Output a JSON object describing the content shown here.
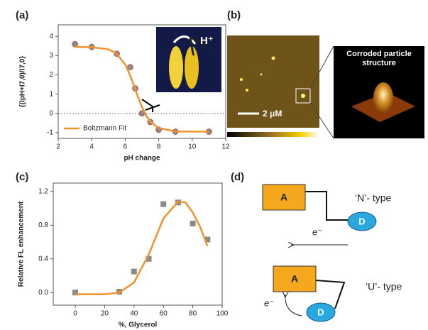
{
  "panels": [
    "(a)",
    "(b)",
    "(c)",
    "(d)"
  ],
  "chart_data": [
    {
      "type": "scatter",
      "x_label": "pH change",
      "y_label": "{(IpH+I7,0)/I7,0}",
      "xlim": [
        2,
        12
      ],
      "ylim": [
        -1.3,
        4.6
      ],
      "xticks": [
        2,
        4,
        6,
        8,
        10,
        12
      ],
      "yticks": [
        -1,
        0,
        1,
        2,
        3,
        4
      ],
      "reference_line": 0,
      "legend": "lower left",
      "inset_text": "H⁺",
      "series": [
        {
          "color": "#8a8a8a",
          "marker": "circle",
          "x": [
            3,
            4,
            5.5,
            6.3,
            6.6,
            7,
            7.5,
            8,
            9,
            11
          ],
          "values": [
            3.6,
            3.45,
            3.1,
            2.4,
            1.3,
            0.0,
            -0.45,
            -0.85,
            -0.95,
            -0.95
          ]
        },
        {
          "name": "Boltzmann Fit",
          "color": "#f0922b",
          "marker": "line",
          "x": [
            3,
            4,
            5,
            5.5,
            6,
            6.25,
            6.5,
            6.75,
            7,
            7.25,
            7.5,
            8,
            9,
            11
          ],
          "values": [
            3.45,
            3.44,
            3.33,
            3.1,
            2.53,
            2.07,
            1.49,
            0.89,
            0.33,
            -0.11,
            -0.43,
            -0.76,
            -0.94,
            -0.95
          ]
        }
      ]
    },
    {
      "type": "scatter",
      "x_label": "%, Glycerol",
      "y_label": "Relative FL enhancement",
      "xlim": [
        -15,
        100
      ],
      "ylim": [
        -0.15,
        1.3
      ],
      "xticks": [
        0,
        20,
        40,
        60,
        80,
        100
      ],
      "yticks": [
        {
          "value": 0,
          "label": "0.0"
        },
        0.4,
        0.8,
        1.2
      ],
      "series": [
        {
          "color": "#8a8a8a",
          "marker": "square",
          "x": [
            0,
            30,
            40,
            50,
            60,
            70,
            80,
            90
          ],
          "values": [
            0.0,
            0.01,
            0.25,
            0.4,
            1.05,
            1.07,
            0.82,
            0.63
          ]
        },
        {
          "color": "#f0922b",
          "marker": "line",
          "x": [
            0,
            20,
            30,
            40,
            50,
            60,
            70,
            75,
            80,
            85,
            90
          ],
          "values": [
            -0.02,
            -0.02,
            0.0,
            0.12,
            0.45,
            0.88,
            1.08,
            1.07,
            0.95,
            0.78,
            0.55
          ]
        }
      ]
    }
  ],
  "afm": {
    "scale_bar": "2 μM",
    "inset_title": [
      "Corroded particle",
      "structure"
    ]
  },
  "diagram": {
    "acceptor": "A",
    "donor": "D",
    "n_type": "‘N’- type",
    "u_type": "‘U’- type",
    "electron": "e⁻"
  }
}
